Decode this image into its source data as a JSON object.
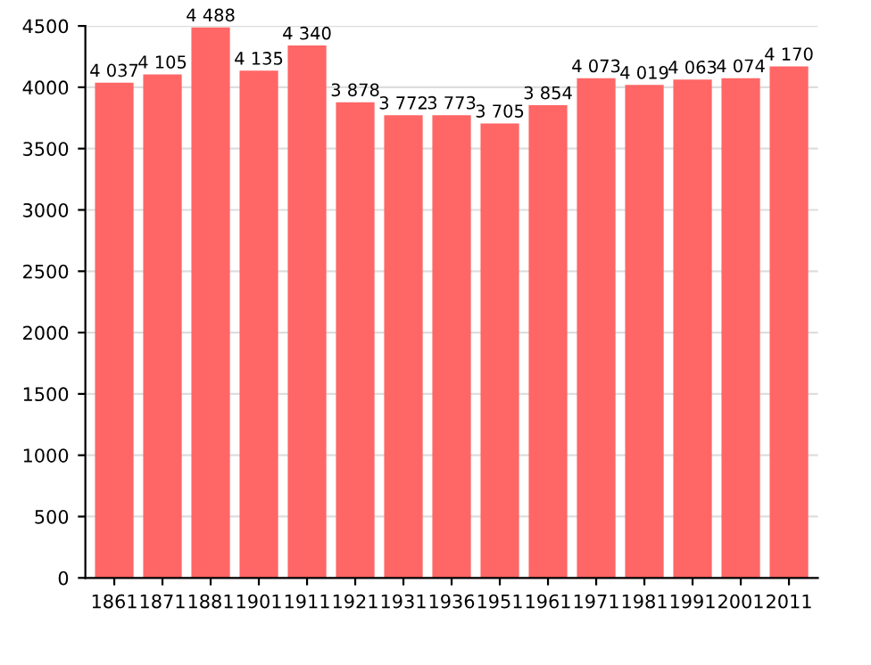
{
  "chart_data": {
    "type": "bar",
    "categories": [
      "1861",
      "1871",
      "1881",
      "1901",
      "1911",
      "1921",
      "1931",
      "1936",
      "1951",
      "1961",
      "1971",
      "1981",
      "1991",
      "2001",
      "2011"
    ],
    "values": [
      4037,
      4105,
      4488,
      4135,
      4340,
      3878,
      3772,
      3773,
      3705,
      3854,
      4073,
      4019,
      4063,
      4074,
      4170
    ],
    "value_labels": [
      "4 037",
      "4 105",
      "4 488",
      "4 135",
      "4 340",
      "3 878",
      "3 772",
      "3 773",
      "3 705",
      "3 854",
      "4 073",
      "4 019",
      "4 063",
      "4 074",
      "4 170"
    ],
    "color": "#ff6666",
    "ylim": [
      0,
      4500
    ],
    "yticks": [
      0,
      500,
      1000,
      1500,
      2000,
      2500,
      3000,
      3500,
      4000,
      4500
    ],
    "grid": "y"
  }
}
